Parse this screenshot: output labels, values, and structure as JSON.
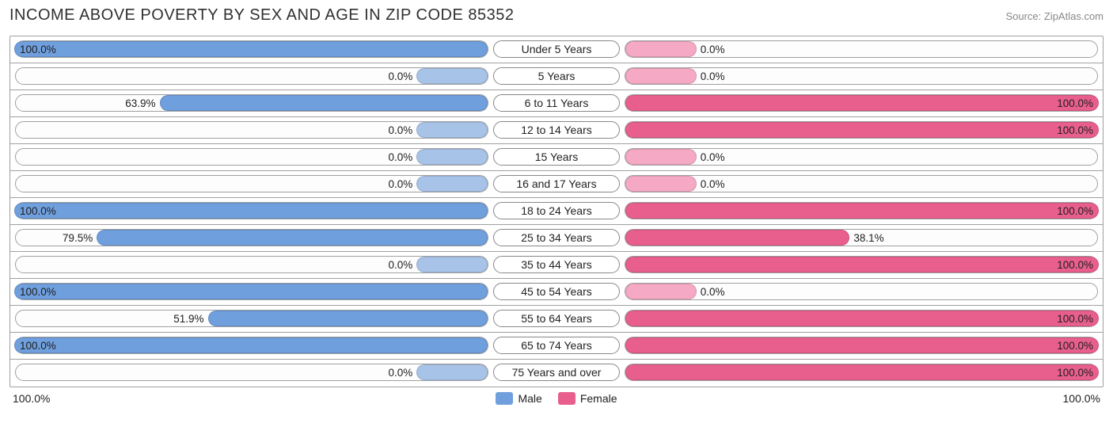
{
  "title": "INCOME ABOVE POVERTY BY SEX AND AGE IN ZIP CODE 85352",
  "source": "Source: ZipAtlas.com",
  "colors": {
    "male_fill": "#6f9fdd",
    "male_light": "#a8c3e8",
    "female_fill": "#e85f8e",
    "female_light": "#f5a9c4",
    "track_border": "#a0a0a0",
    "track_bg": "#fdfdfd",
    "text": "#202020"
  },
  "axis": {
    "left": "100.0%",
    "right": "100.0%"
  },
  "legend": {
    "male": "Male",
    "female": "Female"
  },
  "baseline_pct": 15,
  "rows": [
    {
      "label": "Under 5 Years",
      "male_pct": 100.0,
      "female_pct": 0.0,
      "male_txt": "100.0%",
      "female_txt": "0.0%"
    },
    {
      "label": "5 Years",
      "male_pct": 0.0,
      "female_pct": 0.0,
      "male_txt": "0.0%",
      "female_txt": "0.0%"
    },
    {
      "label": "6 to 11 Years",
      "male_pct": 63.9,
      "female_pct": 100.0,
      "male_txt": "63.9%",
      "female_txt": "100.0%"
    },
    {
      "label": "12 to 14 Years",
      "male_pct": 0.0,
      "female_pct": 100.0,
      "male_txt": "0.0%",
      "female_txt": "100.0%"
    },
    {
      "label": "15 Years",
      "male_pct": 0.0,
      "female_pct": 0.0,
      "male_txt": "0.0%",
      "female_txt": "0.0%"
    },
    {
      "label": "16 and 17 Years",
      "male_pct": 0.0,
      "female_pct": 0.0,
      "male_txt": "0.0%",
      "female_txt": "0.0%"
    },
    {
      "label": "18 to 24 Years",
      "male_pct": 100.0,
      "female_pct": 100.0,
      "male_txt": "100.0%",
      "female_txt": "100.0%"
    },
    {
      "label": "25 to 34 Years",
      "male_pct": 79.5,
      "female_pct": 38.1,
      "male_txt": "79.5%",
      "female_txt": "38.1%"
    },
    {
      "label": "35 to 44 Years",
      "male_pct": 0.0,
      "female_pct": 100.0,
      "male_txt": "0.0%",
      "female_txt": "100.0%"
    },
    {
      "label": "45 to 54 Years",
      "male_pct": 100.0,
      "female_pct": 0.0,
      "male_txt": "100.0%",
      "female_txt": "0.0%"
    },
    {
      "label": "55 to 64 Years",
      "male_pct": 51.9,
      "female_pct": 100.0,
      "male_txt": "51.9%",
      "female_txt": "100.0%"
    },
    {
      "label": "65 to 74 Years",
      "male_pct": 100.0,
      "female_pct": 100.0,
      "male_txt": "100.0%",
      "female_txt": "100.0%"
    },
    {
      "label": "75 Years and over",
      "male_pct": 0.0,
      "female_pct": 100.0,
      "male_txt": "0.0%",
      "female_txt": "100.0%"
    }
  ]
}
